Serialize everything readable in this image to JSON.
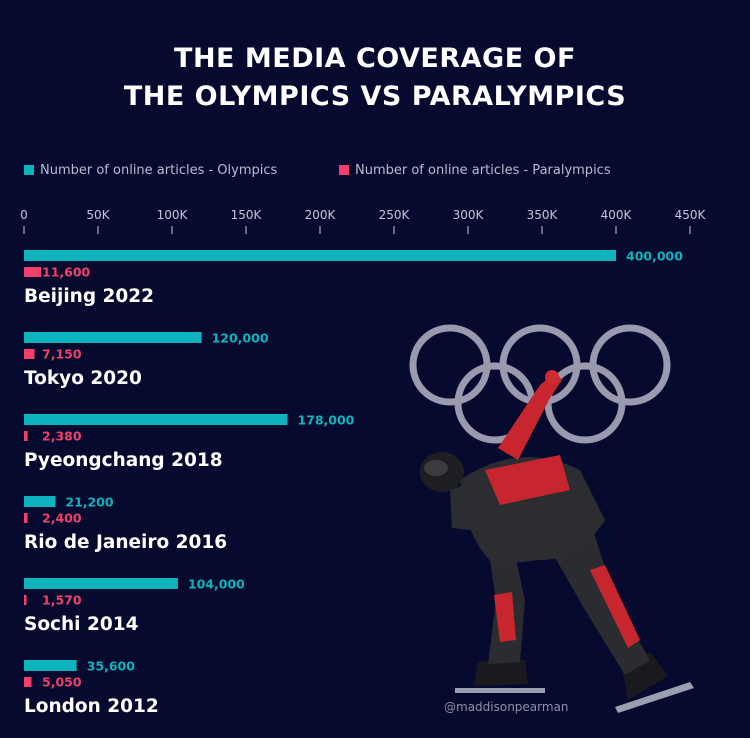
{
  "title_lines": [
    "THE MEDIA COVERAGE OF",
    "THE OLYMPICS VS PARALYMPICS"
  ],
  "watermark": "@maddisonpearman",
  "colors": {
    "background": "#060a2e",
    "olympics": "#0db3bd",
    "paralympics": "#f2406a",
    "rings": "#9a9aae",
    "text": "#ffffff",
    "axis_text": "#c3c6d6"
  },
  "chart_data": {
    "type": "bar",
    "orientation": "horizontal",
    "categories": [
      "Beijing 2022",
      "Tokyo 2020",
      "Pyeongchang 2018",
      "Rio de Janeiro 2016",
      "Sochi 2014",
      "London 2012"
    ],
    "series": [
      {
        "name": "Number of online articles - Olympics",
        "values": [
          400000,
          120000,
          178000,
          21200,
          104000,
          35600
        ],
        "labels": [
          "400,000",
          "120,000",
          "178,000",
          "21,200",
          "104,000",
          "35,600"
        ],
        "color": "#0db3bd"
      },
      {
        "name": "Number of online articles - Paralympics",
        "values": [
          11600,
          7150,
          2380,
          2400,
          1570,
          5050
        ],
        "labels": [
          "11,600",
          "7,150",
          "2,380",
          "2,400",
          "1,570",
          "5,050"
        ],
        "color": "#f2406a"
      }
    ],
    "xlim": [
      0,
      450000
    ],
    "xticks": [
      0,
      50000,
      100000,
      150000,
      200000,
      250000,
      300000,
      350000,
      400000,
      450000
    ],
    "xtick_labels": [
      "0",
      "50K",
      "100K",
      "150K",
      "200K",
      "250K",
      "300K",
      "350K",
      "400K",
      "450K"
    ],
    "axis_position": "top",
    "legend_position": "top-left",
    "grid": false
  }
}
